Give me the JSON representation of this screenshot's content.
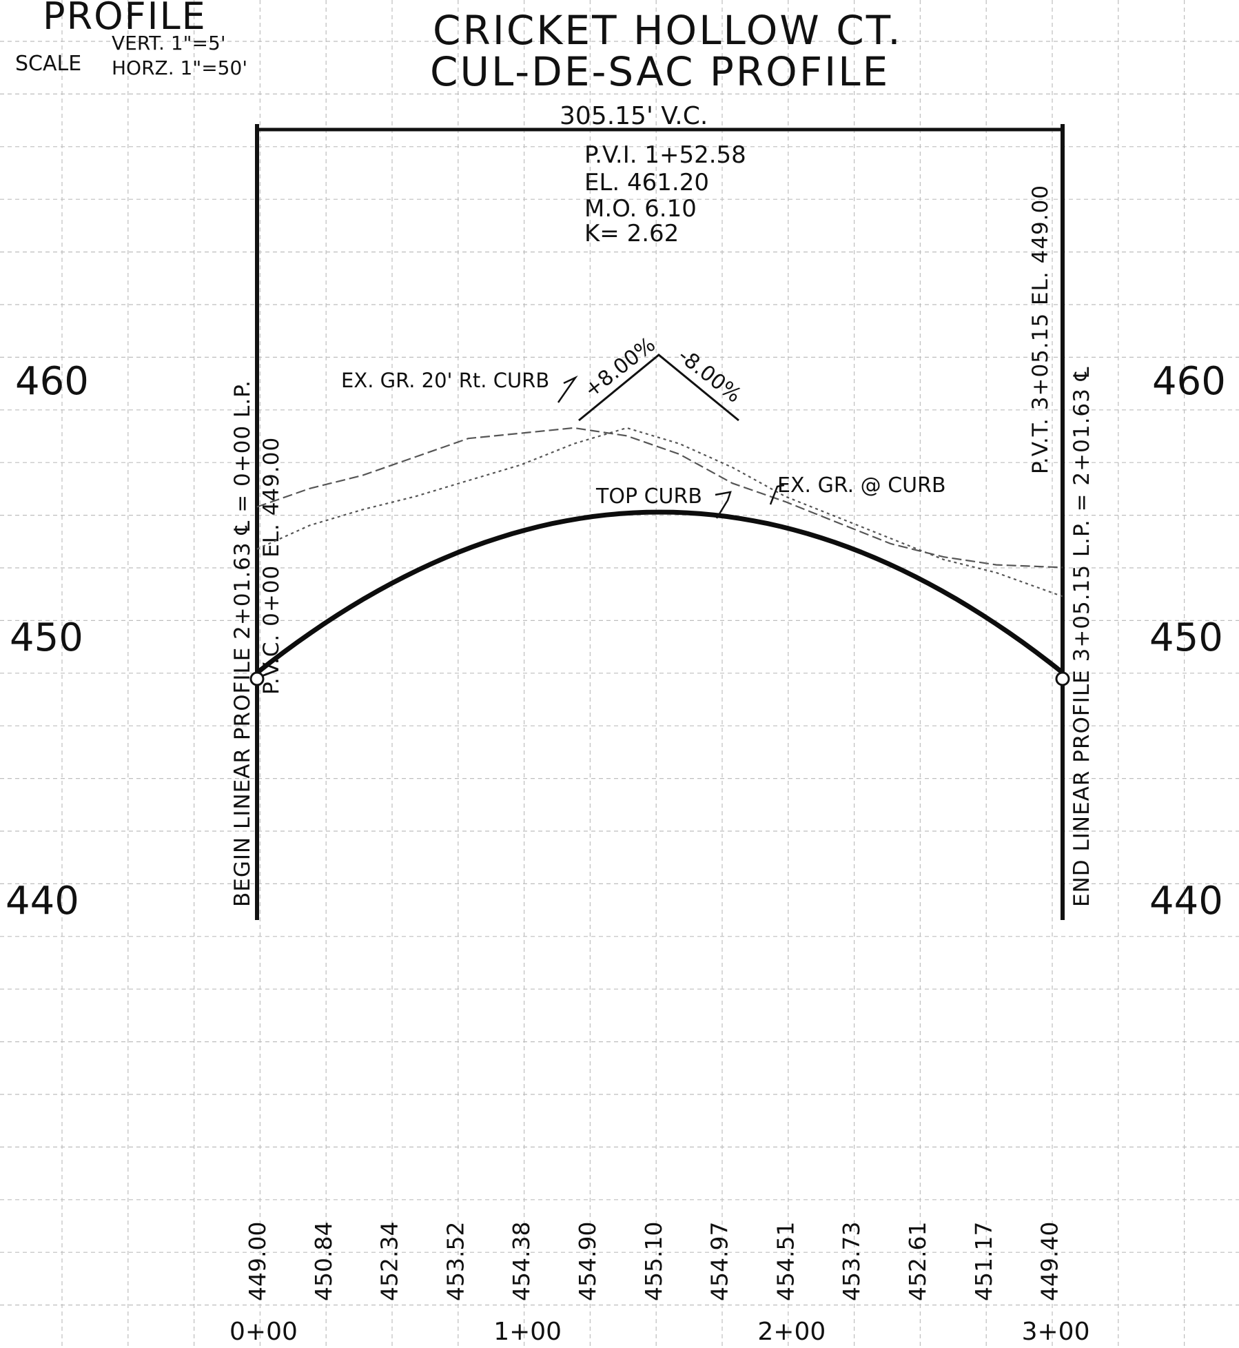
{
  "header": {
    "profile_word": "PROFILE",
    "scale_word": "SCALE",
    "vert_scale": "VERT. 1\"=5'",
    "horz_scale": "HORZ. 1\"=50'"
  },
  "title": {
    "line1": "CRICKET HOLLOW CT.",
    "line2": "CUL-DE-SAC PROFILE"
  },
  "vc_length_label": "305.15' V.C.",
  "pvi": {
    "station": "P.V.I. 1+52.58",
    "elevation": "EL. 461.20",
    "middle_ordinate": "M.O. 6.10",
    "k_value": "K= 2.62"
  },
  "grades": {
    "left": "+8.00%",
    "right": "-8.00%"
  },
  "labels": {
    "ex_gr_20_rt": "EX. GR. 20' Rt. CURB",
    "top_curb": "TOP CURB",
    "ex_gr_curb": "EX. GR. @ CURB"
  },
  "left_vertical": {
    "line1": "BEGIN LINEAR PROFILE 2+01.63 ℄ = 0+00 L.P.",
    "line2": "P.V.C. 0+00 EL. 449.00"
  },
  "right_vertical": {
    "line1": "END LINEAR PROFILE 3+05.15 L.P. = 2+01.63 ℄",
    "line2": "P.V.T. 3+05.15 EL. 449.00"
  },
  "elevation_axis": {
    "labels": [
      "460",
      "450",
      "440"
    ]
  },
  "station_axis": {
    "labels": [
      "0+00",
      "1+00",
      "2+00",
      "3+00"
    ]
  },
  "chart_data": {
    "type": "line",
    "xlabel": "",
    "ylabel": "",
    "x_range": [
      0,
      305.15
    ],
    "y_ticks": [
      460,
      450,
      440
    ],
    "x_ticks": [
      0,
      100,
      200,
      300
    ],
    "x_tick_labels": [
      "0+00",
      "1+00",
      "2+00",
      "3+00"
    ],
    "pvc": {
      "station": 0,
      "elevation": 449.0
    },
    "pvt": {
      "station": 305.15,
      "elevation": 449.0
    },
    "pvi": {
      "station": 152.58,
      "elevation": 461.2
    },
    "grade_in_percent": 8.0,
    "grade_out_percent": -8.0,
    "curve_length": 305.15,
    "elevation_table": {
      "stations": [
        0,
        25,
        50,
        75,
        100,
        125,
        150,
        175,
        200,
        225,
        250,
        275,
        300
      ],
      "elevations": [
        "449.00",
        "450.84",
        "452.34",
        "453.52",
        "454.38",
        "454.90",
        "455.10",
        "454.97",
        "454.51",
        "453.73",
        "452.61",
        "451.17",
        "449.40"
      ]
    },
    "series": [
      {
        "name": "TOP CURB",
        "stations": [
          0,
          25,
          50,
          75,
          100,
          125,
          152.58,
          175,
          200,
          225,
          250,
          275,
          305.15
        ],
        "elevations": [
          449.0,
          450.84,
          452.34,
          453.52,
          454.38,
          454.9,
          455.1,
          454.97,
          454.51,
          453.73,
          452.61,
          451.17,
          449.0
        ]
      },
      {
        "name": "EX. GR. 20' Rt. CURB",
        "stations": [
          0,
          20,
          40,
          60,
          80,
          100,
          120,
          140,
          160,
          180,
          200,
          220,
          240,
          260,
          280,
          305
        ],
        "elevations": [
          455.3,
          456.0,
          456.5,
          457.2,
          457.9,
          458.1,
          458.3,
          458.0,
          457.3,
          456.2,
          455.5,
          454.7,
          453.9,
          453.4,
          453.1,
          453.0
        ]
      },
      {
        "name": "EX. GR. @ CURB",
        "stations": [
          0,
          20,
          40,
          60,
          80,
          100,
          120,
          140,
          160,
          180,
          200,
          220,
          240,
          260,
          280,
          305
        ],
        "elevations": [
          453.7,
          454.6,
          455.2,
          455.7,
          456.3,
          456.9,
          457.7,
          458.3,
          457.7,
          456.8,
          455.7,
          454.9,
          454.1,
          453.3,
          452.8,
          451.9
        ]
      }
    ]
  }
}
